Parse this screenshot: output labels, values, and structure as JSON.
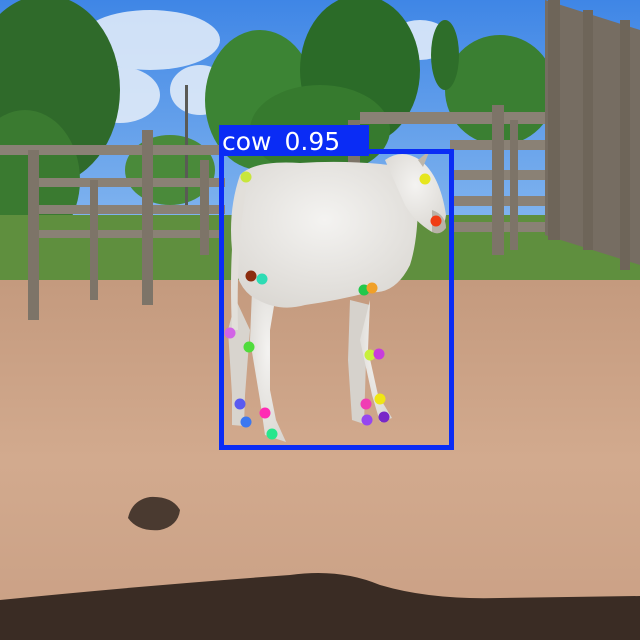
{
  "detections": [
    {
      "label": "cow",
      "score_text": "0.95",
      "box_color": "#0a2cf5",
      "label_text_color": "#ffffff"
    }
  ],
  "keypoints": [
    {
      "name": "horn-tip-left",
      "color": "#c8e63c"
    },
    {
      "name": "horn-tip-right",
      "color": "#e6e61e"
    },
    {
      "name": "nose",
      "color": "#f03c14"
    },
    {
      "name": "tail-base",
      "color": "#c8e63c"
    },
    {
      "name": "hip-left",
      "color": "#8c2d0f"
    },
    {
      "name": "hip-right",
      "color": "#2ddcb4"
    },
    {
      "name": "shoulder-left",
      "color": "#23c84b"
    },
    {
      "name": "shoulder-right",
      "color": "#f0a028"
    },
    {
      "name": "hock-left",
      "color": "#d264e6"
    },
    {
      "name": "stifle-left",
      "color": "#50dc3c"
    },
    {
      "name": "knee-left",
      "color": "#c8f03c"
    },
    {
      "name": "knee-right",
      "color": "#c83cdc"
    },
    {
      "name": "rear-fetlock-left",
      "color": "#5a5af0"
    },
    {
      "name": "rear-hoof-left",
      "color": "#3c78f0"
    },
    {
      "name": "rear-fetlock-right",
      "color": "#ff2ab4"
    },
    {
      "name": "rear-hoof-right",
      "color": "#28e68c"
    },
    {
      "name": "front-fetlock-left",
      "color": "#f03cb4"
    },
    {
      "name": "front-fetlock-right",
      "color": "#f0e614"
    },
    {
      "name": "front-hoof-left",
      "color": "#9646f0"
    },
    {
      "name": "front-hoof-right",
      "color": "#7828c8"
    }
  ]
}
